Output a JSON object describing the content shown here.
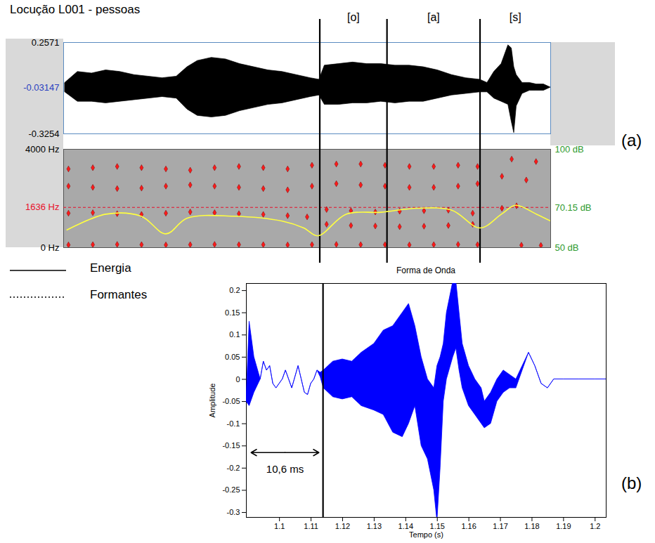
{
  "chart_data": [
    {
      "type": "area",
      "panel": "(a)",
      "title": "Locução L001 - pessoas",
      "color": "#000000",
      "tick_labels": "y",
      "xlim": [
        0,
        1
      ],
      "ylim": [
        -0.3254,
        0.2571
      ],
      "yticks": [
        0.2571,
        -0.3254
      ],
      "cursor": {
        "value": -0.03147,
        "color": "#2a3fc0"
      },
      "segments": [
        {
          "label": "[o]",
          "start": 0.526,
          "end": 0.664
        },
        {
          "label": "[a]",
          "start": 0.664,
          "end": 0.855
        },
        {
          "label": "[s]",
          "start": 0.855,
          "end": 1
        }
      ],
      "x": [
        0.003,
        0.029,
        0.058,
        0.087,
        0.116,
        0.145,
        0.174,
        0.203,
        0.232,
        0.254,
        0.275,
        0.304,
        0.333,
        0.362,
        0.391,
        0.42,
        0.449,
        0.478,
        0.507,
        0.525,
        0.536,
        0.565,
        0.594,
        0.623,
        0.652,
        0.681,
        0.71,
        0.739,
        0.768,
        0.797,
        0.826,
        0.855,
        0.87,
        0.884,
        0.899,
        0.913,
        0.92,
        0.925,
        0.93,
        0.942,
        0.957,
        0.971,
        0.986,
        1
      ],
      "upper": [
        0,
        0.07,
        0.06,
        0.08,
        0.07,
        0.05,
        0.04,
        0.03,
        0.04,
        0.1,
        0.14,
        0.16,
        0.15,
        0.12,
        0.1,
        0.08,
        0.07,
        0.05,
        0.03,
        0.02,
        0.11,
        0.12,
        0.13,
        0.12,
        0.12,
        0.11,
        0.11,
        0.1,
        0.08,
        0.05,
        0.03,
        0.02,
        0,
        0.07,
        0.12,
        0.24,
        0.22,
        0.1,
        0.05,
        0,
        0,
        -0.01,
        -0.01,
        -0.03
      ],
      "lower": [
        -0.06,
        -0.12,
        -0.12,
        -0.13,
        -0.12,
        -0.11,
        -0.1,
        -0.09,
        -0.1,
        -0.17,
        -0.21,
        -0.22,
        -0.21,
        -0.18,
        -0.16,
        -0.14,
        -0.13,
        -0.11,
        -0.09,
        -0.08,
        -0.14,
        -0.14,
        -0.13,
        -0.13,
        -0.12,
        -0.13,
        -0.12,
        -0.12,
        -0.1,
        -0.08,
        -0.07,
        -0.06,
        -0.06,
        -0.1,
        -0.12,
        -0.14,
        -0.25,
        -0.32,
        -0.15,
        -0.07,
        -0.05,
        -0.05,
        -0.05,
        -0.03
      ]
    },
    {
      "type": "scatter",
      "tick_labels": "y",
      "legend": "bottom-left",
      "xlim": [
        0,
        1
      ],
      "ylim": [
        0,
        4000
      ],
      "yticks": [
        {
          "value": 4000,
          "label": "4000 Hz"
        },
        {
          "value": 0,
          "label": "0 Hz"
        }
      ],
      "cursor": {
        "value": 1636,
        "label": "1636 Hz",
        "color": "#e8102a"
      },
      "y2lim": [
        50,
        100
      ],
      "y2ticks": [
        {
          "value": 100,
          "label": "100 dB"
        },
        {
          "value": 70.15,
          "label": "70.15 dB"
        },
        {
          "value": 50,
          "label": "50 dB"
        }
      ],
      "series": [
        {
          "name": "Energia",
          "type": "line",
          "axis": "y2",
          "color": "#ffff40",
          "line_style": "solid",
          "x": [
            0.007,
            0.087,
            0.159,
            0.21,
            0.254,
            0.348,
            0.449,
            0.493,
            0.522,
            0.58,
            0.652,
            0.725,
            0.797,
            0.855,
            0.899,
            0.928,
            0.971,
            1
          ],
          "values": [
            59,
            67,
            66,
            57,
            65,
            66,
            63.5,
            60,
            56,
            67,
            68,
            70,
            69,
            60,
            67,
            71.5,
            67,
            63.5
          ]
        },
        {
          "name": "Formantes",
          "type": "scatter",
          "color": "#ff1a1a",
          "marker": "diamond",
          "line_style": "dotted",
          "tracks": [
            {
              "x": [
                0.01,
                0.06,
                0.11,
                0.16,
                0.21,
                0.26,
                0.31,
                0.36,
                0.41,
                0.46,
                0.51,
                0.56,
                0.61,
                0.66,
                0.71,
                0.76,
                0.81,
                0.85,
                0.94,
                0.98
              ],
              "values": [
                110,
                120,
                130,
                120,
                110,
                120,
                130,
                120,
                120,
                110,
                120,
                130,
                120,
                120,
                110,
                120,
                130,
                120,
                100,
                90
              ]
            },
            {
              "x": [
                0.01,
                0.06,
                0.11,
                0.16,
                0.21,
                0.26,
                0.31,
                0.36,
                0.41,
                0.46,
                0.5,
                0.54,
                0.59,
                0.64,
                0.69,
                0.74,
                0.79,
                0.84,
                0.9,
                0.93
              ],
              "values": [
                1400,
                1420,
                1380,
                1350,
                1400,
                1450,
                1420,
                1380,
                1350,
                1300,
                1250,
                950,
                900,
                880,
                850,
                870,
                900,
                950,
                1600,
                1700
              ]
            },
            {
              "x": [
                0.54,
                0.59,
                0.64,
                0.69,
                0.74,
                0.79,
                0.84
              ],
              "values": [
                1550,
                1500,
                1450,
                1480,
                1500,
                1520,
                1400
              ]
            },
            {
              "x": [
                0.01,
                0.06,
                0.11,
                0.16,
                0.21,
                0.26,
                0.31,
                0.36,
                0.41,
                0.46,
                0.51,
                0.56,
                0.61,
                0.66,
                0.71,
                0.76,
                0.81,
                0.85,
                0.9,
                0.95
              ],
              "values": [
                2500,
                2450,
                2400,
                2420,
                2500,
                2550,
                2500,
                2450,
                2400,
                2350,
                2500,
                2600,
                2550,
                2500,
                2450,
                2450,
                2500,
                2600,
                2900,
                2750
              ]
            },
            {
              "x": [
                0.01,
                0.06,
                0.11,
                0.16,
                0.21,
                0.26,
                0.31,
                0.36,
                0.41,
                0.46,
                0.51,
                0.56,
                0.61,
                0.66,
                0.71,
                0.76,
                0.81,
                0.85,
                0.92,
                0.97
              ],
              "values": [
                3200,
                3250,
                3300,
                3250,
                3200,
                3150,
                3250,
                3300,
                3250,
                3200,
                3350,
                3400,
                3400,
                3350,
                3300,
                3300,
                3350,
                3300,
                3600,
                3500
              ]
            }
          ]
        }
      ]
    },
    {
      "type": "area",
      "panel": "(b)",
      "title": "Forma de Onda",
      "x_label": "Tempo (s)",
      "y_label": "Amplitude",
      "color": "#0000ff",
      "xlim": [
        1.0895,
        1.2035
      ],
      "ylim": [
        -0.311,
        0.216
      ],
      "xticks": [
        1.1,
        1.11,
        1.12,
        1.13,
        1.14,
        1.15,
        1.16,
        1.17,
        1.18,
        1.19,
        1.2
      ],
      "yticks": [
        -0.3,
        -0.25,
        -0.2,
        -0.15,
        -0.1,
        -0.05,
        0,
        0.05,
        0.1,
        0.15,
        0.2
      ],
      "marker_line": 1.1138,
      "annotation": {
        "text": "10,6 ms",
        "x": [
          1.091,
          1.1125
        ],
        "y": -0.165
      },
      "x": [
        1.0895,
        1.0905,
        1.092,
        1.094,
        1.095,
        1.096,
        1.097,
        1.098,
        1.099,
        1.1,
        1.101,
        1.102,
        1.103,
        1.104,
        1.106,
        1.107,
        1.108,
        1.109,
        1.11,
        1.111,
        1.112,
        1.113,
        1.114,
        1.117,
        1.12,
        1.123,
        1.126,
        1.13,
        1.133,
        1.136,
        1.139,
        1.141,
        1.143,
        1.145,
        1.147,
        1.149,
        1.15,
        1.151,
        1.152,
        1.153,
        1.155,
        1.156,
        1.157,
        1.158,
        1.16,
        1.162,
        1.164,
        1.165,
        1.167,
        1.169,
        1.171,
        1.173,
        1.175,
        1.177,
        1.179,
        1.181,
        1.183,
        1.185,
        1.187,
        1.19,
        1.195,
        1.2,
        1.2035
      ],
      "upper": [
        -0.05,
        0.13,
        0.05,
        0,
        0.04,
        0.02,
        0.03,
        -0.01,
        -0.02,
        -0.01,
        0,
        0.02,
        0,
        -0.02,
        0.03,
        0,
        -0.03,
        -0.035,
        -0.01,
        0,
        0.02,
        0.015,
        0.02,
        0.04,
        0.045,
        0.04,
        0.06,
        0.08,
        0.11,
        0.12,
        0.15,
        0.17,
        0.12,
        0.05,
        0,
        -0.02,
        0.03,
        0.05,
        0.08,
        0.15,
        0.22,
        0.22,
        0.15,
        0.08,
        0.03,
        0,
        -0.02,
        -0.05,
        -0.03,
        0,
        0.02,
        0.01,
        0,
        0.03,
        0.06,
        0.03,
        -0.01,
        -0.02,
        0,
        0,
        0,
        0,
        0
      ],
      "lower": [
        -0.05,
        -0.06,
        -0.03,
        0,
        0.04,
        0.02,
        0.03,
        -0.01,
        -0.02,
        -0.01,
        0,
        0.02,
        0,
        -0.02,
        0.03,
        0,
        -0.03,
        -0.035,
        -0.01,
        0,
        0.02,
        0.005,
        -0.02,
        -0.04,
        -0.045,
        -0.04,
        -0.06,
        -0.07,
        -0.08,
        -0.12,
        -0.13,
        -0.1,
        -0.06,
        -0.15,
        -0.18,
        -0.25,
        -0.32,
        -0.2,
        -0.05,
        0,
        0.05,
        0.07,
        0.02,
        -0.02,
        -0.06,
        -0.08,
        -0.1,
        -0.11,
        -0.1,
        -0.05,
        -0.03,
        -0.02,
        -0.02,
        0.02,
        0.06,
        0.03,
        -0.01,
        -0.02,
        0,
        0,
        0,
        0,
        0
      ]
    }
  ]
}
